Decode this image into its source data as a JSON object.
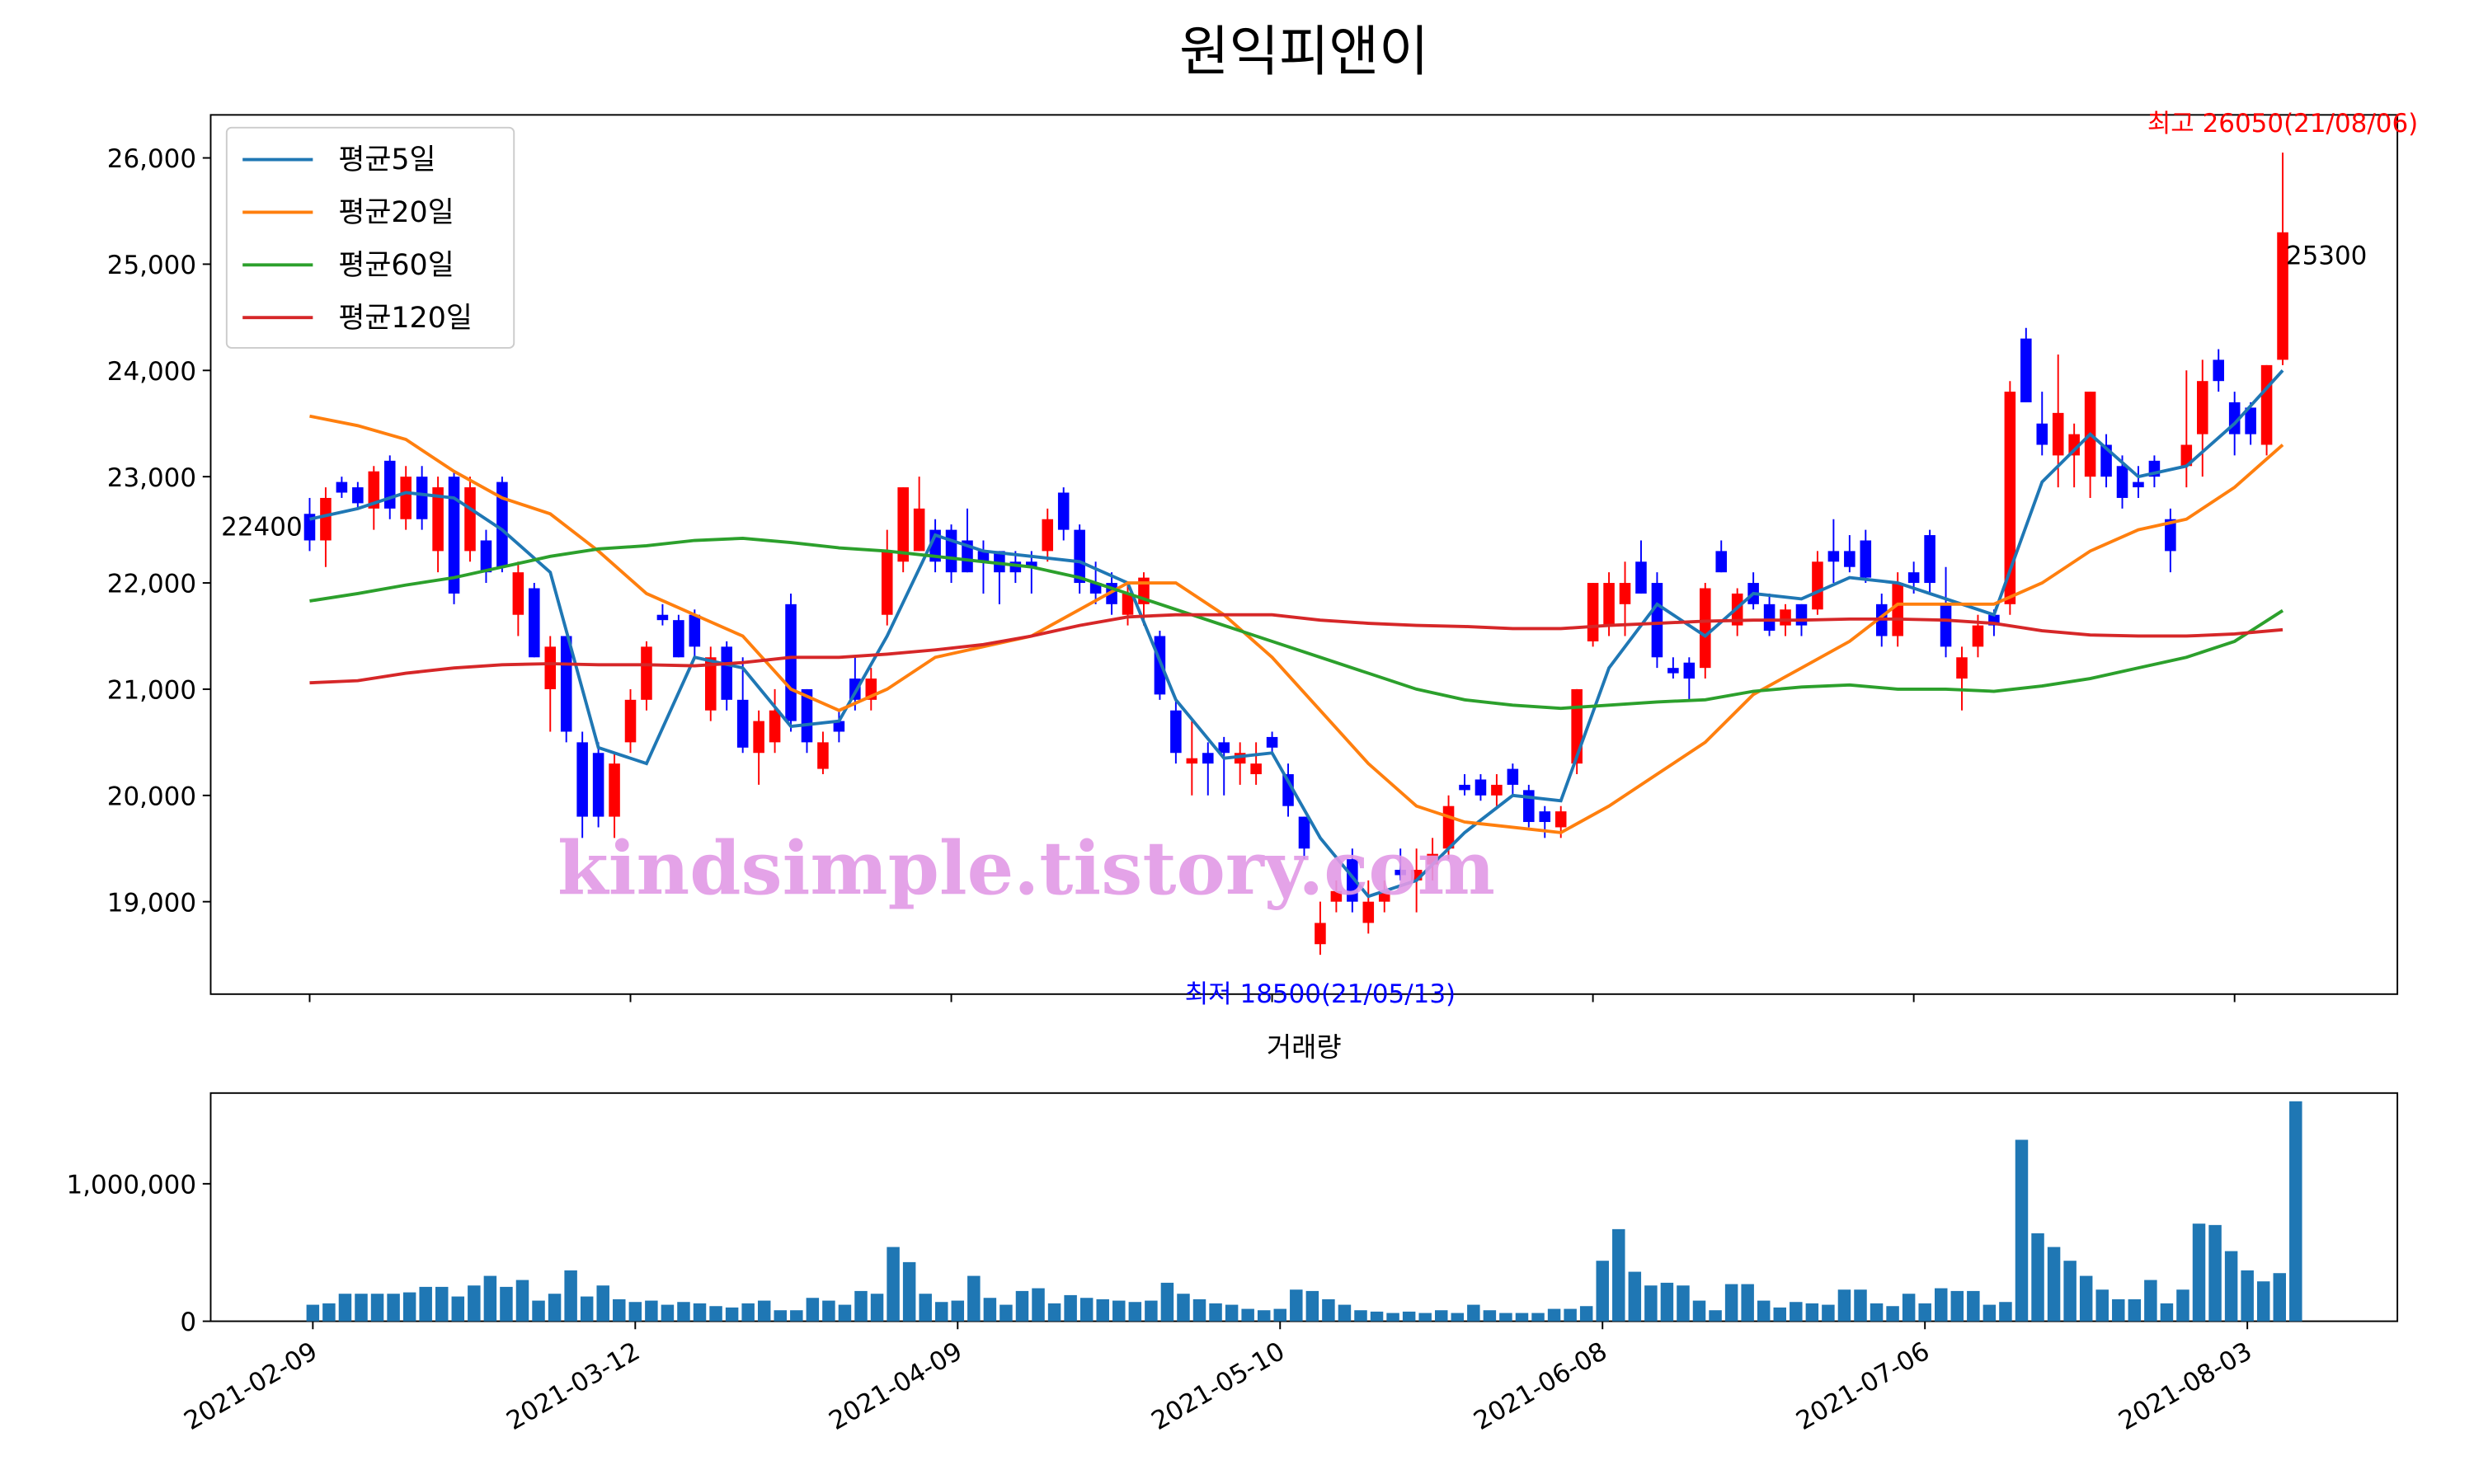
{
  "chart_data": [
    {
      "type": "candlestick",
      "title": "원익피앤이",
      "watermark": "kindsimple.tistory.com",
      "up_color": "red",
      "down_color": "blue",
      "ylim": [
        18130,
        26405
      ],
      "yticks": [
        {
          "value": 19000,
          "label": "19,000"
        },
        {
          "value": 20000,
          "label": "20,000"
        },
        {
          "value": 21000,
          "label": "21,000"
        },
        {
          "value": 22000,
          "label": "22,000"
        },
        {
          "value": 23000,
          "label": "23,000"
        },
        {
          "value": 24000,
          "label": "24,000"
        },
        {
          "value": 25000,
          "label": "25,000"
        },
        {
          "value": 26000,
          "label": "26,000"
        }
      ],
      "open": [
        22650,
        22400,
        22950,
        22900,
        22700,
        23150,
        22600,
        23000,
        22300,
        23000,
        22300,
        22400,
        22950,
        21700,
        21950,
        21000,
        21500,
        20500,
        20400,
        19800,
        20500,
        20900,
        21700,
        21650,
        21700,
        20800,
        21400,
        20900,
        20400,
        20500,
        21800,
        21000,
        20250,
        20700,
        21100,
        20900,
        21700,
        22200,
        22300,
        22500,
        22500,
        22400,
        22300,
        22300,
        22200,
        22200,
        22300,
        22850,
        22500,
        22000,
        22000,
        21700,
        21800,
        21500,
        20800,
        20300,
        20400,
        20500,
        20300,
        20200,
        20550,
        20200,
        19800,
        18600,
        19000,
        19400,
        18800,
        19000,
        19300,
        19200,
        19350,
        19500,
        20100,
        20150,
        20000,
        20250,
        20050,
        19850,
        19700,
        20300,
        21450,
        21600,
        21800,
        22200,
        22000,
        21200,
        21250,
        21200,
        22300,
        21600,
        22000,
        21800,
        21600,
        21800,
        21750,
        22300,
        22300,
        22400,
        21800,
        21500,
        22100,
        22450,
        21800,
        21100,
        21400,
        21700,
        21800,
        24300,
        23500,
        23200,
        23200,
        23000,
        23300,
        23100,
        22950,
        23150,
        22600,
        23100,
        23400,
        24100,
        23700,
        23650,
        23300,
        24100
      ],
      "high": [
        22800,
        22900,
        23000,
        22950,
        23100,
        23200,
        23100,
        23100,
        23000,
        23050,
        23000,
        22500,
        23000,
        22200,
        22000,
        21500,
        21500,
        20600,
        20500,
        20400,
        21000,
        21450,
        21800,
        21700,
        21750,
        21400,
        21450,
        21300,
        20800,
        21000,
        21900,
        21000,
        20600,
        20800,
        21300,
        21200,
        22500,
        22900,
        23000,
        22600,
        22550,
        22700,
        22400,
        22300,
        22300,
        22300,
        22700,
        22900,
        22550,
        22200,
        22100,
        22000,
        22100,
        21550,
        20900,
        20700,
        20500,
        20550,
        20500,
        20500,
        20600,
        20300,
        19800,
        19000,
        19200,
        19500,
        19200,
        19200,
        19500,
        19500,
        19600,
        20000,
        20200,
        20200,
        20200,
        20300,
        20100,
        19900,
        19900,
        21000,
        22000,
        22100,
        22200,
        22400,
        22100,
        21300,
        21300,
        22000,
        22400,
        21950,
        22100,
        21900,
        21800,
        21800,
        22300,
        22600,
        22450,
        22500,
        21900,
        22100,
        22200,
        22500,
        22150,
        21400,
        21700,
        21750,
        23900,
        24400,
        23800,
        24150,
        23500,
        23800,
        23400,
        23200,
        23100,
        23200,
        22700,
        24000,
        24100,
        24200,
        23800,
        23700,
        24050,
        26050
      ],
      "low": [
        22300,
        22150,
        22800,
        22700,
        22500,
        22600,
        22500,
        22500,
        22100,
        21800,
        22200,
        22000,
        22100,
        21500,
        21300,
        20600,
        20500,
        19600,
        19700,
        19600,
        20400,
        20800,
        21600,
        21300,
        21300,
        20700,
        20800,
        20400,
        20100,
        20400,
        20600,
        20400,
        20200,
        20500,
        20800,
        20800,
        21600,
        22100,
        22300,
        22100,
        22000,
        22100,
        21900,
        21800,
        22000,
        21900,
        22200,
        22400,
        21900,
        21800,
        21700,
        21600,
        21600,
        20900,
        20300,
        20000,
        20000,
        20000,
        20100,
        20100,
        20400,
        19800,
        19400,
        18500,
        18900,
        18900,
        18700,
        18900,
        19200,
        18900,
        19200,
        19400,
        20000,
        19950,
        19900,
        20000,
        19700,
        19600,
        19600,
        20200,
        21400,
        21500,
        21500,
        21900,
        21200,
        21100,
        20900,
        21100,
        22100,
        21500,
        21750,
        21500,
        21500,
        21500,
        21700,
        22000,
        22100,
        22000,
        21400,
        21400,
        21900,
        21900,
        21300,
        20800,
        21300,
        21500,
        21700,
        23700,
        23200,
        22900,
        22900,
        22800,
        22900,
        22700,
        22800,
        22900,
        22100,
        22900,
        23000,
        23800,
        23200,
        23300,
        23200,
        24050
      ],
      "close": [
        22400,
        22800,
        22850,
        22750,
        23050,
        22700,
        23000,
        22600,
        22900,
        21900,
        22900,
        22100,
        22150,
        22100,
        21300,
        21400,
        20600,
        19800,
        19800,
        20300,
        20900,
        21400,
        21650,
        21300,
        21400,
        21300,
        20900,
        20450,
        20700,
        20800,
        20700,
        20500,
        20500,
        20600,
        20900,
        21100,
        22300,
        22900,
        22700,
        22200,
        22100,
        22100,
        22200,
        22100,
        22100,
        22150,
        22600,
        22500,
        22000,
        21900,
        21800,
        21900,
        22050,
        20950,
        20400,
        20350,
        20300,
        20400,
        20400,
        20300,
        20450,
        19900,
        19500,
        18800,
        19100,
        19000,
        19000,
        19100,
        19250,
        19300,
        19450,
        19900,
        20050,
        20000,
        20100,
        20100,
        19750,
        19750,
        19850,
        21000,
        22000,
        22000,
        22000,
        21900,
        21300,
        21150,
        21100,
        21950,
        22100,
        21900,
        21800,
        21550,
        21750,
        21600,
        22200,
        22200,
        22150,
        22050,
        21500,
        22000,
        22000,
        22000,
        21400,
        21300,
        21600,
        21600,
        23800,
        23700,
        23300,
        23600,
        23400,
        23800,
        23000,
        22800,
        22900,
        23000,
        22300,
        23300,
        23900,
        23900,
        23400,
        23400,
        24050,
        25300
      ],
      "annotations": [
        {
          "text": "최고 26050(21/08/06)",
          "color": "red"
        },
        {
          "text": "최저 18500(21/05/13)",
          "color": "blue"
        }
      ],
      "series": [
        {
          "name": "평균5일",
          "color": "#1f77b4",
          "x": [
            0,
            3,
            6,
            9,
            12,
            15,
            18,
            21,
            24,
            27,
            30,
            33,
            36,
            39,
            42,
            45,
            48,
            51,
            54,
            57,
            60,
            63,
            66,
            69,
            72,
            75,
            78,
            81,
            84,
            87,
            90,
            93,
            96,
            99,
            102,
            105,
            108,
            111,
            114,
            117,
            120,
            123
          ],
          "values": [
            22600,
            22700,
            22850,
            22800,
            22500,
            22100,
            20450,
            20300,
            21300,
            21200,
            20650,
            20700,
            21500,
            22450,
            22300,
            22250,
            22200,
            22000,
            20900,
            20350,
            20400,
            19600,
            19050,
            19200,
            19650,
            20000,
            19950,
            21200,
            21800,
            21500,
            21900,
            21850,
            22050,
            22000,
            21850,
            21700,
            22950,
            23400,
            23000,
            23100,
            23500,
            24000
          ]
        },
        {
          "name": "평균20일",
          "color": "#ff7f0e",
          "x": [
            0,
            3,
            6,
            9,
            12,
            15,
            18,
            21,
            24,
            27,
            30,
            33,
            36,
            39,
            42,
            45,
            48,
            51,
            54,
            57,
            60,
            63,
            66,
            69,
            72,
            75,
            78,
            81,
            84,
            87,
            90,
            93,
            96,
            99,
            102,
            105,
            108,
            111,
            114,
            117,
            120,
            123
          ],
          "values": [
            23570,
            23480,
            23350,
            23050,
            22800,
            22650,
            22300,
            21900,
            21700,
            21500,
            21000,
            20800,
            21000,
            21300,
            21400,
            21500,
            21750,
            22000,
            22000,
            21700,
            21300,
            20800,
            20300,
            19900,
            19750,
            19700,
            19650,
            19900,
            20200,
            20500,
            20950,
            21200,
            21450,
            21800,
            21800,
            21800,
            22000,
            22300,
            22500,
            22600,
            22900,
            23300
          ]
        },
        {
          "name": "평균60일",
          "color": "#2ca02c",
          "x": [
            0,
            3,
            6,
            9,
            12,
            15,
            18,
            21,
            24,
            27,
            30,
            33,
            36,
            39,
            42,
            45,
            48,
            51,
            54,
            57,
            60,
            63,
            66,
            69,
            72,
            75,
            78,
            81,
            84,
            87,
            90,
            93,
            96,
            99,
            102,
            105,
            108,
            111,
            114,
            117,
            120,
            123
          ],
          "values": [
            21830,
            21900,
            21980,
            22050,
            22150,
            22250,
            22320,
            22350,
            22400,
            22420,
            22380,
            22330,
            22300,
            22250,
            22200,
            22150,
            22050,
            21900,
            21750,
            21600,
            21450,
            21300,
            21150,
            21000,
            20900,
            20850,
            20820,
            20850,
            20880,
            20900,
            20980,
            21020,
            21040,
            21000,
            21000,
            20980,
            21030,
            21100,
            21200,
            21300,
            21450,
            21740
          ]
        },
        {
          "name": "평균120일",
          "color": "#d62728",
          "x": [
            0,
            3,
            6,
            9,
            12,
            15,
            18,
            21,
            24,
            27,
            30,
            33,
            36,
            39,
            42,
            45,
            48,
            51,
            54,
            57,
            60,
            63,
            66,
            69,
            72,
            75,
            78,
            81,
            84,
            87,
            90,
            93,
            96,
            99,
            102,
            105,
            108,
            111,
            114,
            117,
            120,
            123
          ],
          "values": [
            21060,
            21080,
            21150,
            21200,
            21230,
            21240,
            21230,
            21230,
            21220,
            21250,
            21300,
            21300,
            21330,
            21370,
            21420,
            21500,
            21600,
            21680,
            21700,
            21700,
            21700,
            21650,
            21620,
            21600,
            21590,
            21570,
            21570,
            21600,
            21620,
            21640,
            21650,
            21650,
            21660,
            21660,
            21650,
            21620,
            21550,
            21510,
            21500,
            21500,
            21520,
            21560
          ]
        }
      ]
    },
    {
      "type": "bar",
      "title": "거래량",
      "color": "#1f77b4",
      "ylim": [
        0,
        1660000
      ],
      "yticks": [
        0,
        {
          "value": 1000000,
          "label": "1,000,000"
        }
      ],
      "categories": [
        "2021-02-09",
        null,
        null,
        null,
        null,
        null,
        null,
        null,
        null,
        null,
        null,
        null,
        null,
        null,
        null,
        null,
        null,
        null,
        null,
        null,
        "2021-03-12",
        null,
        null,
        null,
        null,
        null,
        null,
        null,
        null,
        null,
        null,
        null,
        null,
        null,
        null,
        null,
        null,
        null,
        null,
        null,
        "2021-04-09",
        null,
        null,
        null,
        null,
        null,
        null,
        null,
        null,
        null,
        null,
        null,
        null,
        null,
        null,
        null,
        null,
        null,
        null,
        null,
        "2021-05-10",
        null,
        null,
        null,
        null,
        null,
        null,
        null,
        null,
        null,
        null,
        null,
        null,
        null,
        null,
        null,
        null,
        null,
        null,
        null,
        "2021-06-08",
        null,
        null,
        null,
        null,
        null,
        null,
        null,
        null,
        null,
        null,
        null,
        null,
        null,
        null,
        null,
        null,
        null,
        null,
        null,
        "2021-07-06",
        null,
        null,
        null,
        null,
        null,
        null,
        null,
        null,
        null,
        null,
        null,
        null,
        null,
        null,
        null,
        null,
        null,
        null,
        null,
        "2021-08-03",
        null,
        null,
        null
      ],
      "values": [
        120000,
        130000,
        200000,
        200000,
        200000,
        200000,
        210000,
        250000,
        250000,
        180000,
        260000,
        330000,
        250000,
        300000,
        150000,
        200000,
        370000,
        180000,
        260000,
        160000,
        140000,
        150000,
        120000,
        140000,
        130000,
        110000,
        100000,
        130000,
        150000,
        80000,
        80000,
        170000,
        150000,
        120000,
        220000,
        200000,
        540000,
        430000,
        200000,
        140000,
        150000,
        330000,
        170000,
        120000,
        220000,
        240000,
        130000,
        190000,
        170000,
        160000,
        150000,
        140000,
        150000,
        280000,
        200000,
        160000,
        130000,
        120000,
        90000,
        80000,
        90000,
        230000,
        220000,
        160000,
        120000,
        80000,
        70000,
        60000,
        70000,
        60000,
        80000,
        60000,
        120000,
        80000,
        60000,
        60000,
        60000,
        90000,
        90000,
        110000,
        440000,
        670000,
        360000,
        260000,
        280000,
        260000,
        150000,
        80000,
        270000,
        270000,
        150000,
        100000,
        140000,
        130000,
        120000,
        230000,
        230000,
        130000,
        110000,
        200000,
        130000,
        240000,
        220000,
        220000,
        120000,
        140000,
        1320000,
        640000,
        540000,
        440000,
        330000,
        230000,
        160000,
        160000,
        300000,
        130000,
        230000,
        710000,
        700000,
        510000,
        370000,
        290000,
        350000,
        1600000
      ]
    }
  ]
}
